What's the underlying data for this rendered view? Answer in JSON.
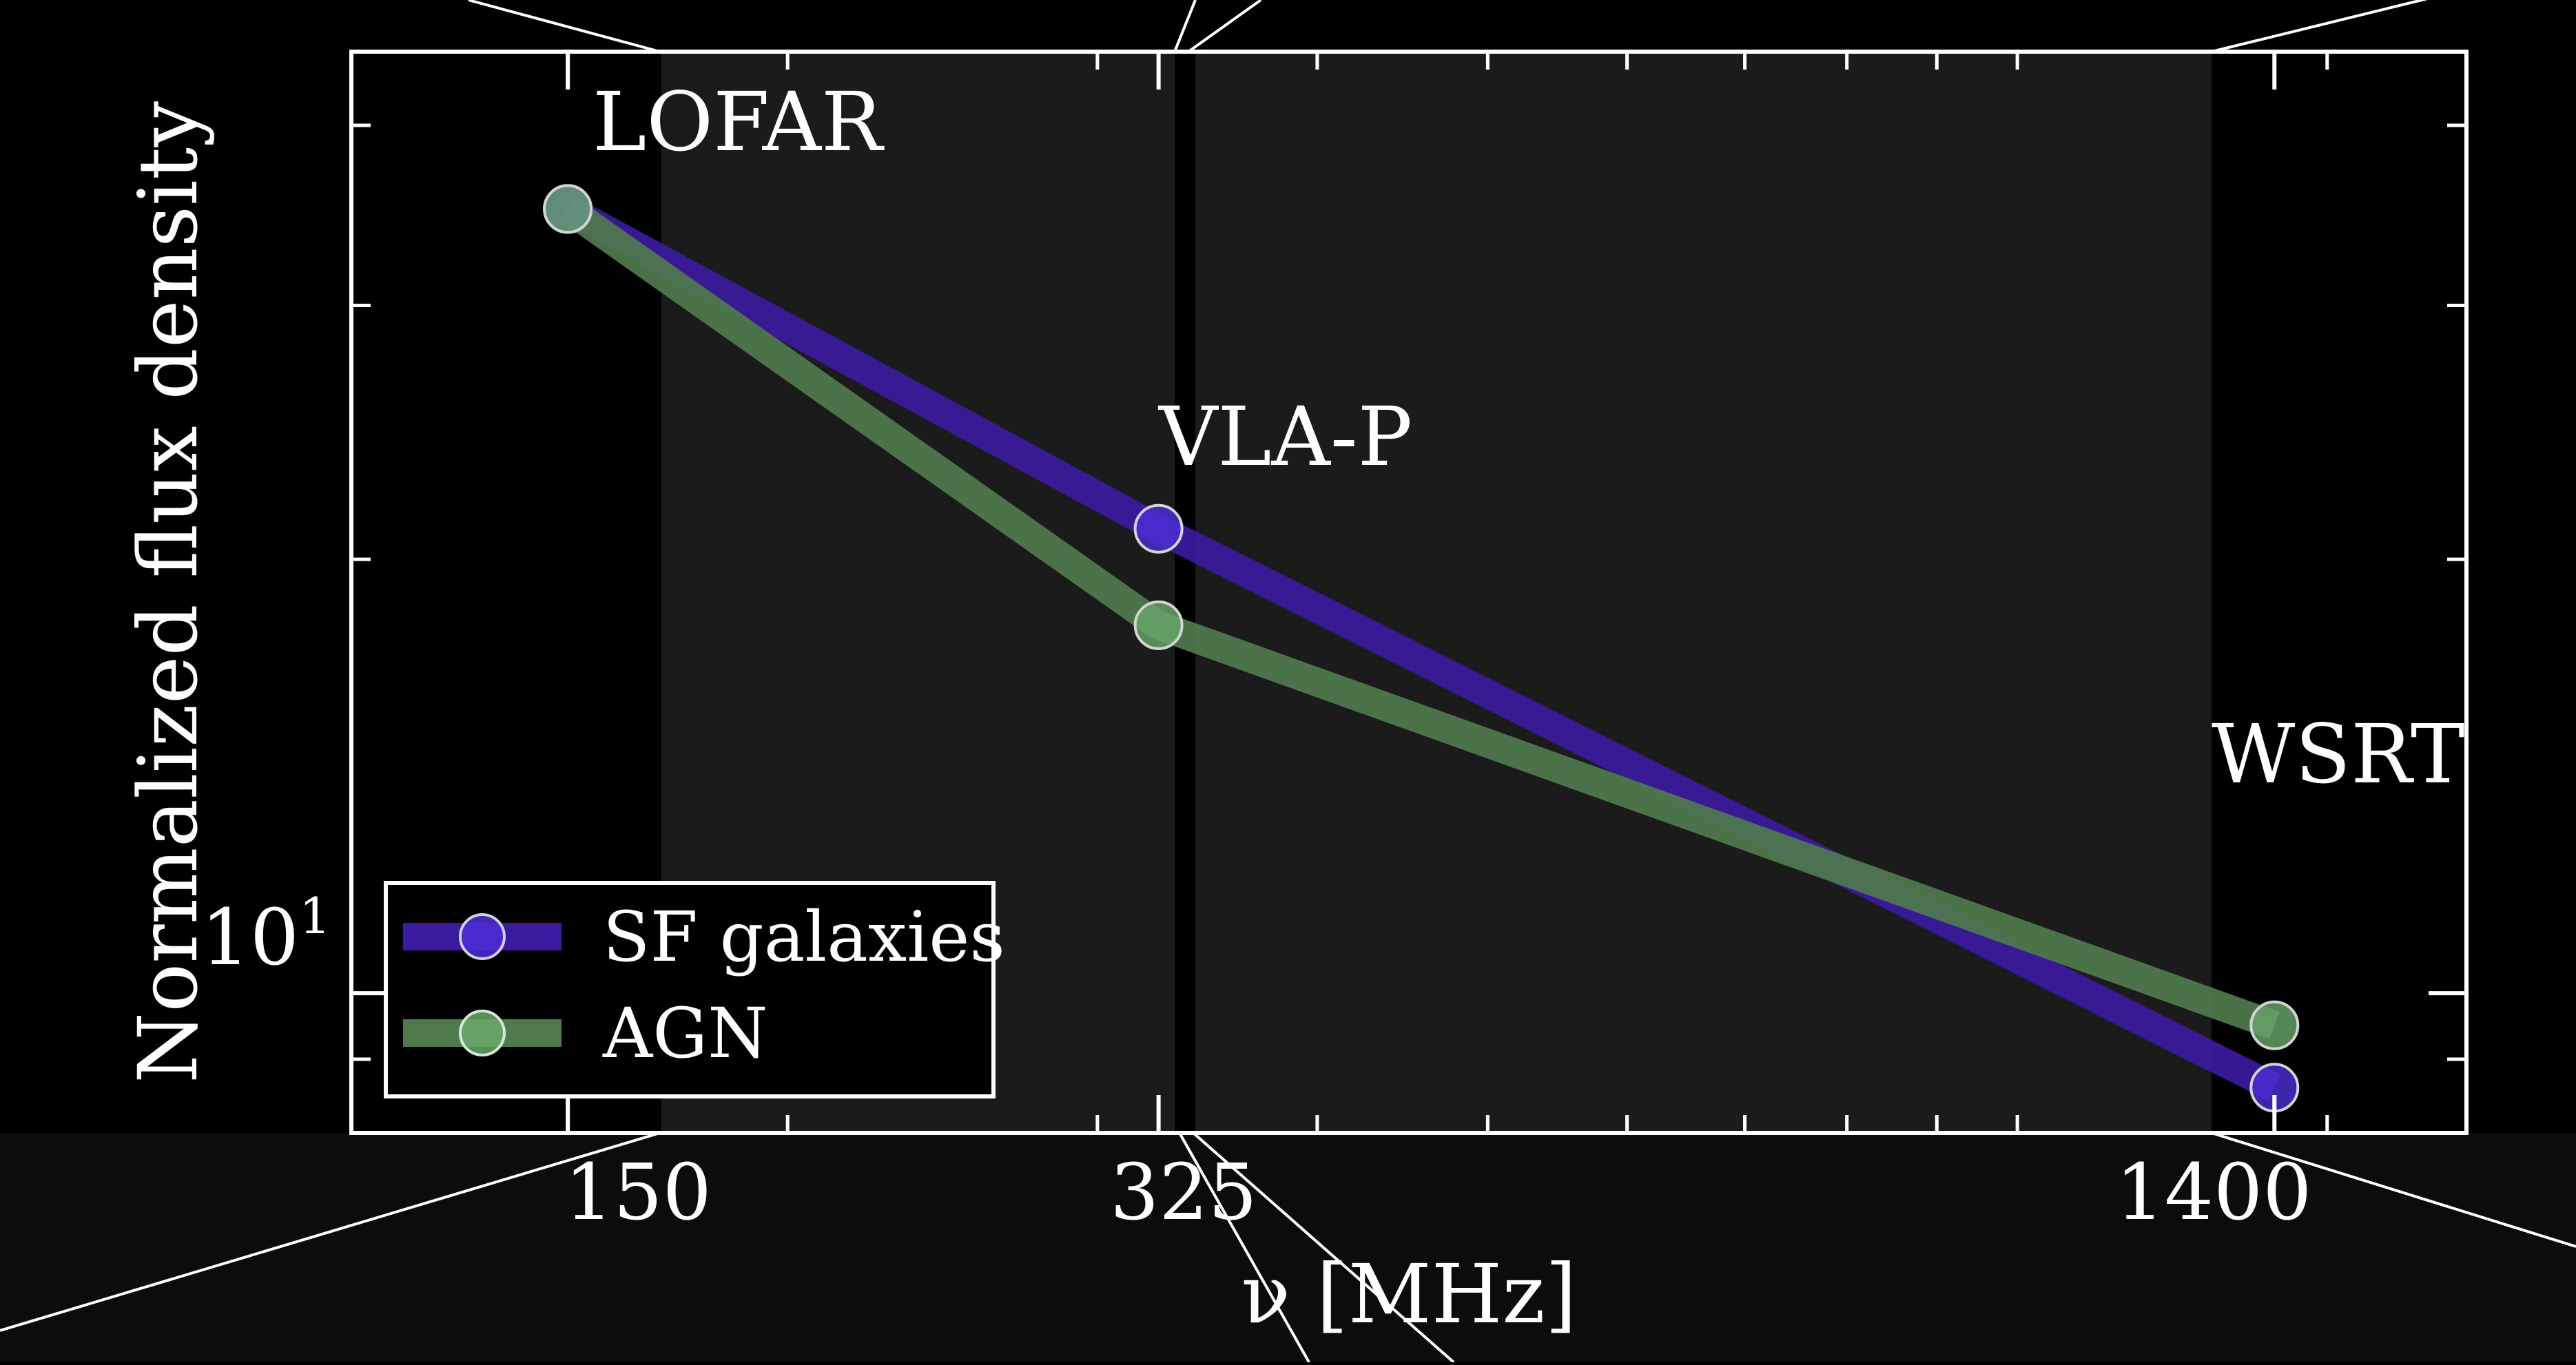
{
  "chart_data": {
    "type": "line",
    "title": "",
    "xlabel": "ν [MHz]",
    "ylabel": "Normalized flux density",
    "xscale": "log",
    "yscale": "log",
    "x": [
      150,
      325,
      1400
    ],
    "xticklabels": [
      "150",
      "325",
      "1400"
    ],
    "yticklabels": [
      {
        "value": 10,
        "base": "10",
        "exp": "1"
      }
    ],
    "series": [
      {
        "name": "SF galaxies",
        "x": [
          150,
          325,
          1400
        ],
        "y": [
          35,
          21,
          8.6
        ],
        "color": "#3a1a9e",
        "marker_color": "#4d2ed8"
      },
      {
        "name": "AGN",
        "x": [
          150,
          325,
          1400
        ],
        "y": [
          35,
          18,
          9.5
        ],
        "color": "#4f7a4d",
        "marker_color": "#6aa86a"
      }
    ],
    "annotations": [
      {
        "text": "LOFAR",
        "x": 150
      },
      {
        "text": "VLA-P",
        "x": 325
      },
      {
        "text": "WSRT",
        "x": 1400
      }
    ],
    "ylim": [
      8,
      45
    ],
    "xlim": [
      113,
      1800
    ],
    "grid": false,
    "legend": {
      "position": "lower-left"
    }
  }
}
